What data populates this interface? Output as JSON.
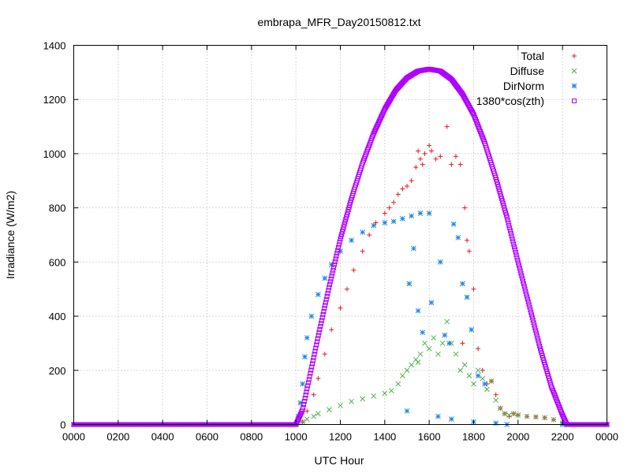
{
  "chart_data": {
    "type": "scatter",
    "title": "embrapa_MFR_Day20150812.txt",
    "xlabel": "UTC Hour",
    "ylabel": "Irradiance (W/m2)",
    "xlim": [
      0,
      24
    ],
    "ylim": [
      0,
      1400
    ],
    "x_tick_values": [
      0,
      2,
      4,
      6,
      8,
      10,
      12,
      14,
      16,
      18,
      20,
      22,
      24
    ],
    "x_tick_labels": [
      "0000",
      "0200",
      "0400",
      "0600",
      "0800",
      "1000",
      "1200",
      "1400",
      "1600",
      "1800",
      "2000",
      "2200",
      "0000"
    ],
    "y_ticks": [
      0,
      200,
      400,
      600,
      800,
      1000,
      1200,
      1400
    ],
    "grid": true,
    "legend_position": "top-right",
    "series": [
      {
        "name": "Total",
        "marker": "+",
        "color": "#e41a1c",
        "points": [
          [
            0,
            0
          ],
          [
            10.0,
            0
          ],
          [
            10.3,
            10
          ],
          [
            10.5,
            50
          ],
          [
            10.8,
            110
          ],
          [
            11.0,
            170
          ],
          [
            11.3,
            260
          ],
          [
            11.6,
            350
          ],
          [
            12.0,
            430
          ],
          [
            12.3,
            500
          ],
          [
            12.6,
            570
          ],
          [
            13.0,
            640
          ],
          [
            13.3,
            700
          ],
          [
            13.6,
            745
          ],
          [
            14.0,
            780
          ],
          [
            14.2,
            800
          ],
          [
            14.4,
            820
          ],
          [
            14.6,
            850
          ],
          [
            14.8,
            870
          ],
          [
            15.0,
            880
          ],
          [
            15.2,
            900
          ],
          [
            15.4,
            950
          ],
          [
            15.5,
            1010
          ],
          [
            15.6,
            980
          ],
          [
            15.7,
            960
          ],
          [
            15.8,
            1000
          ],
          [
            16.0,
            1030
          ],
          [
            16.1,
            1010
          ],
          [
            16.3,
            980
          ],
          [
            16.5,
            990
          ],
          [
            16.8,
            1100
          ],
          [
            17.0,
            960
          ],
          [
            17.2,
            990
          ],
          [
            17.4,
            960
          ],
          [
            17.6,
            800
          ],
          [
            17.5,
            300
          ],
          [
            17.7,
            680
          ],
          [
            17.8,
            640
          ],
          [
            18.0,
            500
          ],
          [
            18.2,
            280
          ],
          [
            18.4,
            200
          ],
          [
            18.6,
            150
          ],
          [
            18.8,
            160
          ],
          [
            19.0,
            110
          ],
          [
            19.2,
            60
          ],
          [
            19.4,
            40
          ],
          [
            19.6,
            30
          ],
          [
            19.8,
            40
          ],
          [
            20.0,
            35
          ],
          [
            20.4,
            30
          ],
          [
            20.8,
            28
          ],
          [
            21.2,
            25
          ],
          [
            21.6,
            18
          ],
          [
            22.0,
            5
          ],
          [
            22.2,
            0
          ],
          [
            24,
            0
          ]
        ]
      },
      {
        "name": "Diffuse",
        "marker": "x",
        "color": "#4daf4a",
        "points": [
          [
            0,
            0
          ],
          [
            10.0,
            0
          ],
          [
            10.3,
            10
          ],
          [
            10.5,
            20
          ],
          [
            10.8,
            30
          ],
          [
            11.0,
            40
          ],
          [
            11.5,
            55
          ],
          [
            12.0,
            70
          ],
          [
            12.5,
            85
          ],
          [
            13.0,
            95
          ],
          [
            13.5,
            105
          ],
          [
            14.0,
            115
          ],
          [
            14.3,
            125
          ],
          [
            14.6,
            150
          ],
          [
            14.8,
            180
          ],
          [
            15.0,
            200
          ],
          [
            15.2,
            220
          ],
          [
            15.4,
            240
          ],
          [
            15.5,
            230
          ],
          [
            15.6,
            260
          ],
          [
            15.8,
            300
          ],
          [
            16.0,
            280
          ],
          [
            16.2,
            320
          ],
          [
            16.4,
            260
          ],
          [
            16.6,
            300
          ],
          [
            16.8,
            380
          ],
          [
            17.0,
            300
          ],
          [
            17.2,
            260
          ],
          [
            17.4,
            200
          ],
          [
            17.6,
            220
          ],
          [
            17.8,
            180
          ],
          [
            18.0,
            150
          ],
          [
            18.2,
            200
          ],
          [
            18.4,
            170
          ],
          [
            18.6,
            130
          ],
          [
            18.8,
            160
          ],
          [
            19.0,
            90
          ],
          [
            19.2,
            60
          ],
          [
            19.4,
            40
          ],
          [
            19.6,
            35
          ],
          [
            19.8,
            40
          ],
          [
            20.0,
            35
          ],
          [
            20.4,
            30
          ],
          [
            20.8,
            28
          ],
          [
            21.2,
            25
          ],
          [
            21.6,
            18
          ],
          [
            22.0,
            5
          ],
          [
            22.2,
            0
          ],
          [
            24,
            0
          ]
        ]
      },
      {
        "name": "DirNorm",
        "marker": "*",
        "color": "#1e88e5",
        "points": [
          [
            0,
            0
          ],
          [
            10.0,
            0
          ],
          [
            10.1,
            30
          ],
          [
            10.2,
            80
          ],
          [
            10.3,
            150
          ],
          [
            10.4,
            250
          ],
          [
            10.5,
            320
          ],
          [
            10.7,
            400
          ],
          [
            11.0,
            480
          ],
          [
            11.3,
            540
          ],
          [
            11.6,
            590
          ],
          [
            12.0,
            640
          ],
          [
            12.5,
            680
          ],
          [
            13.0,
            710
          ],
          [
            13.5,
            735
          ],
          [
            14.0,
            745
          ],
          [
            14.4,
            750
          ],
          [
            14.8,
            760
          ],
          [
            15.2,
            770
          ],
          [
            15.6,
            780
          ],
          [
            16.0,
            780
          ],
          [
            15.5,
            420
          ],
          [
            15.3,
            650
          ],
          [
            15.1,
            520
          ],
          [
            15.7,
            340
          ],
          [
            16.1,
            450
          ],
          [
            16.5,
            600
          ],
          [
            16.7,
            330
          ],
          [
            16.9,
            300
          ],
          [
            17.1,
            740
          ],
          [
            17.3,
            690
          ],
          [
            17.5,
            520
          ],
          [
            17.7,
            470
          ],
          [
            17.9,
            350
          ],
          [
            18.2,
            180
          ],
          [
            18.5,
            150
          ],
          [
            15.0,
            50
          ],
          [
            16.4,
            30
          ],
          [
            17.0,
            20
          ],
          [
            18.0,
            10
          ],
          [
            19.0,
            5
          ],
          [
            19.5,
            0
          ],
          [
            22,
            0
          ],
          [
            24,
            0
          ]
        ]
      },
      {
        "name": "1380*cos(zth)",
        "marker": "square",
        "color": "#b000ff",
        "curve": {
          "zero_before": 10.0,
          "peak_hour": 16.1,
          "peak_value": 1312,
          "zero_after": 22.2
        },
        "points": [
          [
            0,
            0
          ],
          [
            10.0,
            0
          ],
          [
            10.3,
            55
          ],
          [
            10.6,
            170
          ],
          [
            11.0,
            325
          ],
          [
            11.5,
            510
          ],
          [
            12.0,
            685
          ],
          [
            12.5,
            835
          ],
          [
            13.0,
            965
          ],
          [
            13.5,
            1075
          ],
          [
            14.0,
            1165
          ],
          [
            14.5,
            1235
          ],
          [
            15.0,
            1280
          ],
          [
            15.5,
            1305
          ],
          [
            16.0,
            1312
          ],
          [
            16.5,
            1305
          ],
          [
            17.0,
            1275
          ],
          [
            17.5,
            1220
          ],
          [
            18.0,
            1145
          ],
          [
            18.5,
            1040
          ],
          [
            19.0,
            910
          ],
          [
            19.5,
            765
          ],
          [
            20.0,
            600
          ],
          [
            20.5,
            440
          ],
          [
            21.0,
            280
          ],
          [
            21.5,
            140
          ],
          [
            22.0,
            35
          ],
          [
            22.2,
            0
          ],
          [
            24,
            0
          ]
        ]
      }
    ]
  }
}
